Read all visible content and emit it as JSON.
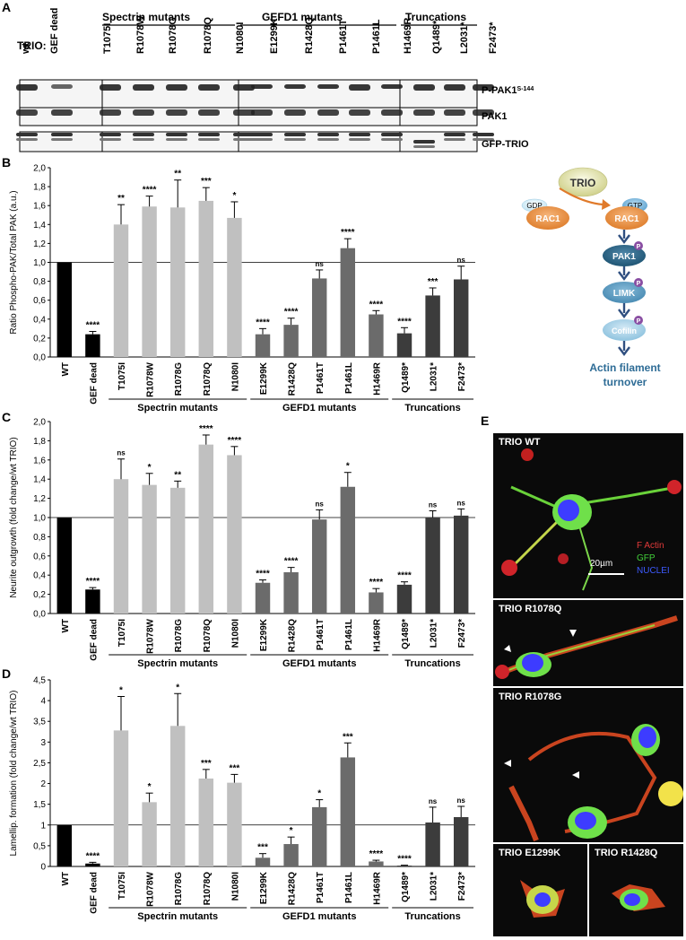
{
  "panels": {
    "A": "A",
    "B": "B",
    "C": "C",
    "D": "D",
    "E": "E"
  },
  "groups": {
    "spectrin": "Spectrin mutants",
    "gefd1": "GEFD1 mutants",
    "truncations": "Truncations"
  },
  "blot": {
    "trio_label": "TRIO:",
    "lanes": [
      "wt",
      "GEF dead",
      "T1075I",
      "R1078W",
      "R1078G",
      "R1078Q",
      "N1080I",
      "E1299K",
      "R1428Q",
      "P1461T",
      "P1461L",
      "H1469R",
      "Q1489*",
      "L2031*",
      "F2473*"
    ],
    "rows": [
      "P-PAK1",
      "PAK1",
      "GFP-TRIO"
    ],
    "row_sup": "S-144"
  },
  "pathway": {
    "trio": "TRIO",
    "gdp": "GDP",
    "gtp": "GTP",
    "rac1_left": "RAC1",
    "rac1_right": "RAC1",
    "pak1": "PAK1",
    "limk": "LIMK",
    "cofilin": "Cofilin",
    "phospho": "P",
    "outcome_line1": "Actin filament",
    "outcome_line2": "turnover"
  },
  "micrographs": {
    "wt": "TRIO WT",
    "r1078q": "TRIO R1078Q",
    "r1078g": "TRIO R1078G",
    "e1299k": "TRIO E1299K",
    "r1428q": "TRIO R1428Q",
    "legend_factin": "F Actin",
    "legend_gfp": "GFP",
    "legend_nuclei": "NUCLEI",
    "scale": "20µm"
  },
  "chart_data": [
    {
      "panel": "B",
      "type": "bar",
      "ylabel": "Ratio Phospho-PAK/Total PAK (a.u.)",
      "ylim": [
        0,
        2
      ],
      "yticks": [
        "0,0",
        "0,2",
        "0,4",
        "0,6",
        "0,8",
        "1,0",
        "1,2",
        "1,4",
        "1,6",
        "1,8",
        "2,0"
      ],
      "reference_line": 1.0,
      "categories": [
        "WT",
        "GEF dead",
        "T1075I",
        "R1078W",
        "R1078G",
        "R1078Q",
        "N1080I",
        "E1299K",
        "R1428Q",
        "P1461T",
        "P1461L",
        "H1469R",
        "Q1489*",
        "L2031*",
        "F2473*"
      ],
      "values": [
        1.0,
        0.24,
        1.4,
        1.59,
        1.58,
        1.65,
        1.47,
        0.24,
        0.34,
        0.83,
        1.15,
        0.45,
        0.25,
        0.65,
        0.82
      ],
      "errors": [
        0,
        0.03,
        0.21,
        0.11,
        0.29,
        0.14,
        0.17,
        0.06,
        0.07,
        0.09,
        0.1,
        0.04,
        0.06,
        0.08,
        0.14
      ],
      "significance": [
        "",
        "****",
        "**",
        "****",
        "**",
        "***",
        "*",
        "****",
        "****",
        "ns",
        "****",
        "****",
        "****",
        "***",
        "ns"
      ]
    },
    {
      "panel": "C",
      "type": "bar",
      "ylabel": "Neurite outgrowth (fold change/wt TRIO)",
      "ylim": [
        0,
        2
      ],
      "yticks": [
        "0,0",
        "0,2",
        "0,4",
        "0,6",
        "0,8",
        "1,0",
        "1,2",
        "1,4",
        "1,6",
        "1,8",
        "2,0"
      ],
      "reference_line": 1.0,
      "categories": [
        "WT",
        "GEF dead",
        "T1075I",
        "R1078W",
        "R1078G",
        "R1078Q",
        "N1080I",
        "E1299K",
        "R1428Q",
        "P1461T",
        "P1461L",
        "H1469R",
        "Q1489*",
        "L2031*",
        "F2473*"
      ],
      "values": [
        1.0,
        0.25,
        1.4,
        1.34,
        1.31,
        1.76,
        1.65,
        0.32,
        0.43,
        0.98,
        1.32,
        0.22,
        0.3,
        1.0,
        1.02
      ],
      "errors": [
        0,
        0.02,
        0.21,
        0.12,
        0.07,
        0.1,
        0.09,
        0.03,
        0.05,
        0.1,
        0.15,
        0.04,
        0.03,
        0.07,
        0.07
      ],
      "significance": [
        "",
        "****",
        "ns",
        "*",
        "**",
        "****",
        "****",
        "****",
        "****",
        "ns",
        "*",
        "****",
        "****",
        "ns",
        "ns"
      ]
    },
    {
      "panel": "D",
      "type": "bar",
      "ylabel": "Lamellip. formation (fold change/wt TRIO)",
      "ylim": [
        0,
        4.5
      ],
      "yticks": [
        "0",
        "0,5",
        "1",
        "1,5",
        "2",
        "2,5",
        "3",
        "3,5",
        "4",
        "4,5"
      ],
      "reference_line": 1.0,
      "categories": [
        "WT",
        "GEF dead",
        "T1075I",
        "R1078W",
        "R1078G",
        "R1078Q",
        "N1080I",
        "E1299K",
        "R1428Q",
        "P1461T",
        "P1461L",
        "H1469R",
        "Q1489*",
        "L2031*",
        "F2473*"
      ],
      "values": [
        1.0,
        0.07,
        3.28,
        1.55,
        3.39,
        2.12,
        2.02,
        0.21,
        0.54,
        1.43,
        2.63,
        0.12,
        0.02,
        1.06,
        1.19
      ],
      "errors": [
        0,
        0.03,
        0.82,
        0.22,
        0.78,
        0.22,
        0.2,
        0.1,
        0.17,
        0.18,
        0.35,
        0.03,
        0.01,
        0.37,
        0.26
      ],
      "significance": [
        "",
        "****",
        "*",
        "*",
        "*",
        "***",
        "***",
        "***",
        "*",
        "*",
        "***",
        "****",
        "****",
        "ns",
        "ns"
      ]
    }
  ]
}
